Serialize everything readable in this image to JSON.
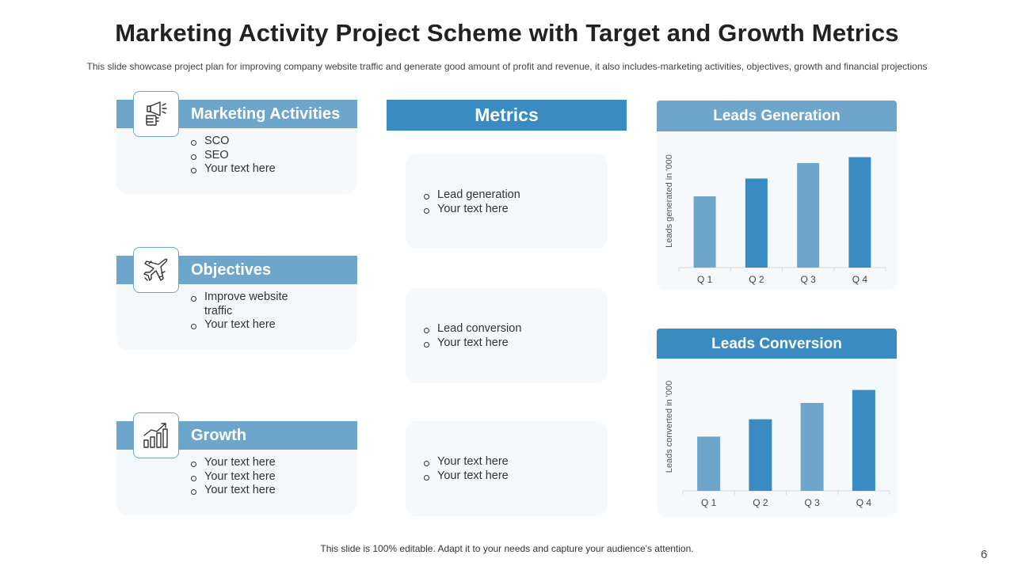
{
  "title": "Marketing Activity Project Scheme with Target and Growth Metrics",
  "subtitle": "This slide showcase project plan for improving company website traffic and generate good amount of profit and revenue, it also includes-marketing activities, objectives, growth and financial projections",
  "sections": [
    {
      "title": "Marketing Activities",
      "icon": "megaphone-hand-icon",
      "items": [
        "SCO",
        "SEO",
        "Your text here"
      ]
    },
    {
      "title": "Objectives",
      "icon": "airplane-icon",
      "items": [
        "Improve website traffic",
        "Your text here"
      ]
    },
    {
      "title": "Growth",
      "icon": "bar-growth-icon",
      "items": [
        "Your text here",
        "Your text here",
        "Your text here"
      ]
    }
  ],
  "metrics": {
    "title": "Metrics",
    "boxes": [
      [
        "Lead generation",
        "Your text here"
      ],
      [
        "Lead conversion",
        "Your text here"
      ],
      [
        "Your text here",
        "Your text here"
      ]
    ]
  },
  "colors": {
    "light_blue": "#6ea6cb",
    "dark_blue": "#3a8bc1",
    "card_bg": "#f5f9fc"
  },
  "chart_data": [
    {
      "type": "bar",
      "title": "Leads Generation",
      "categories": [
        "Q 1",
        "Q 2",
        "Q 3",
        "Q 4"
      ],
      "values": [
        60,
        75,
        88,
        93
      ],
      "ylabel": "Leads generated in '000",
      "xlabel": "",
      "ylim": [
        0,
        100
      ],
      "bar_colors": [
        "#6ea6cb",
        "#3a8bc1",
        "#6ea6cb",
        "#3a8bc1"
      ]
    },
    {
      "type": "bar",
      "title": "Leads Conversion",
      "categories": [
        "Q 1",
        "Q 2",
        "Q 3",
        "Q 4"
      ],
      "values": [
        50,
        66,
        81,
        93
      ],
      "ylabel": "Leads converted in '000",
      "xlabel": "",
      "ylim": [
        0,
        100
      ],
      "bar_colors": [
        "#6ea6cb",
        "#3a8bc1",
        "#6ea6cb",
        "#3a8bc1"
      ]
    }
  ],
  "footer": "This slide is 100% editable. Adapt it to your needs and capture your audience's attention.",
  "page_number": "6"
}
